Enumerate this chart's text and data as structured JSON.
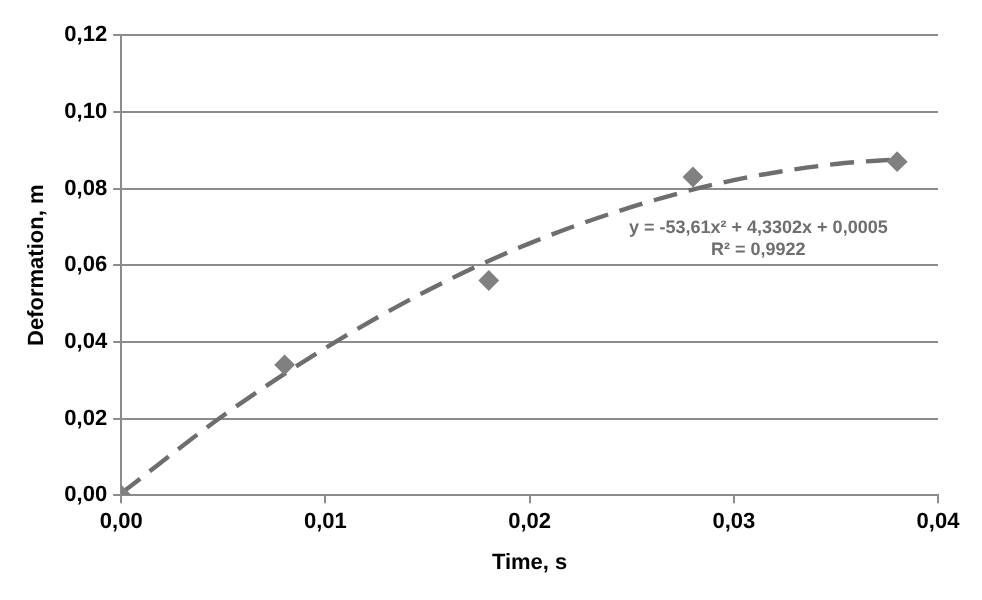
{
  "chart_data": {
    "type": "scatter",
    "xlabel": "Time, s",
    "ylabel": "Deformation, m",
    "series": [
      {
        "type": "scatter",
        "color": "#808080",
        "marker": "diamond",
        "x": [
          0,
          0.008,
          0.018,
          0.028,
          0.038
        ],
        "values": [
          0,
          0.034,
          0.056,
          0.083,
          0.087
        ]
      },
      {
        "type": "line",
        "color": "#6e6e6e",
        "marker": "none",
        "line_style": "dashed",
        "x": [
          0,
          0.005,
          0.01,
          0.015,
          0.02,
          0.025,
          0.03,
          0.035,
          0.038
        ],
        "values": [
          0.0005,
          0.0208,
          0.0384,
          0.0534,
          0.0657,
          0.0752,
          0.0822,
          0.0864,
          0.0876
        ]
      }
    ],
    "annotations": [
      "y = -53,61x² + 4,3302x + 0,0005",
      "R² = 0,9922"
    ],
    "xlim": [
      0,
      0.04
    ],
    "xticks": [
      {
        "value": 0,
        "label": "0,00"
      },
      {
        "value": 0.01,
        "label": "0,01"
      },
      {
        "value": 0.02,
        "label": "0,02"
      },
      {
        "value": 0.03,
        "label": "0,03"
      },
      {
        "value": 0.04,
        "label": "0,04"
      }
    ],
    "ylim": [
      0,
      0.12
    ],
    "yticks": [
      {
        "value": 0,
        "label": "0,00"
      },
      {
        "value": 0.02,
        "label": "0,02"
      },
      {
        "value": 0.04,
        "label": "0,04"
      },
      {
        "value": 0.06,
        "label": "0,06"
      },
      {
        "value": 0.08,
        "label": "0,08"
      },
      {
        "value": 0.1,
        "label": "0,10"
      },
      {
        "value": 0.12,
        "label": "0,12"
      }
    ],
    "grid": "y",
    "legend": false
  }
}
